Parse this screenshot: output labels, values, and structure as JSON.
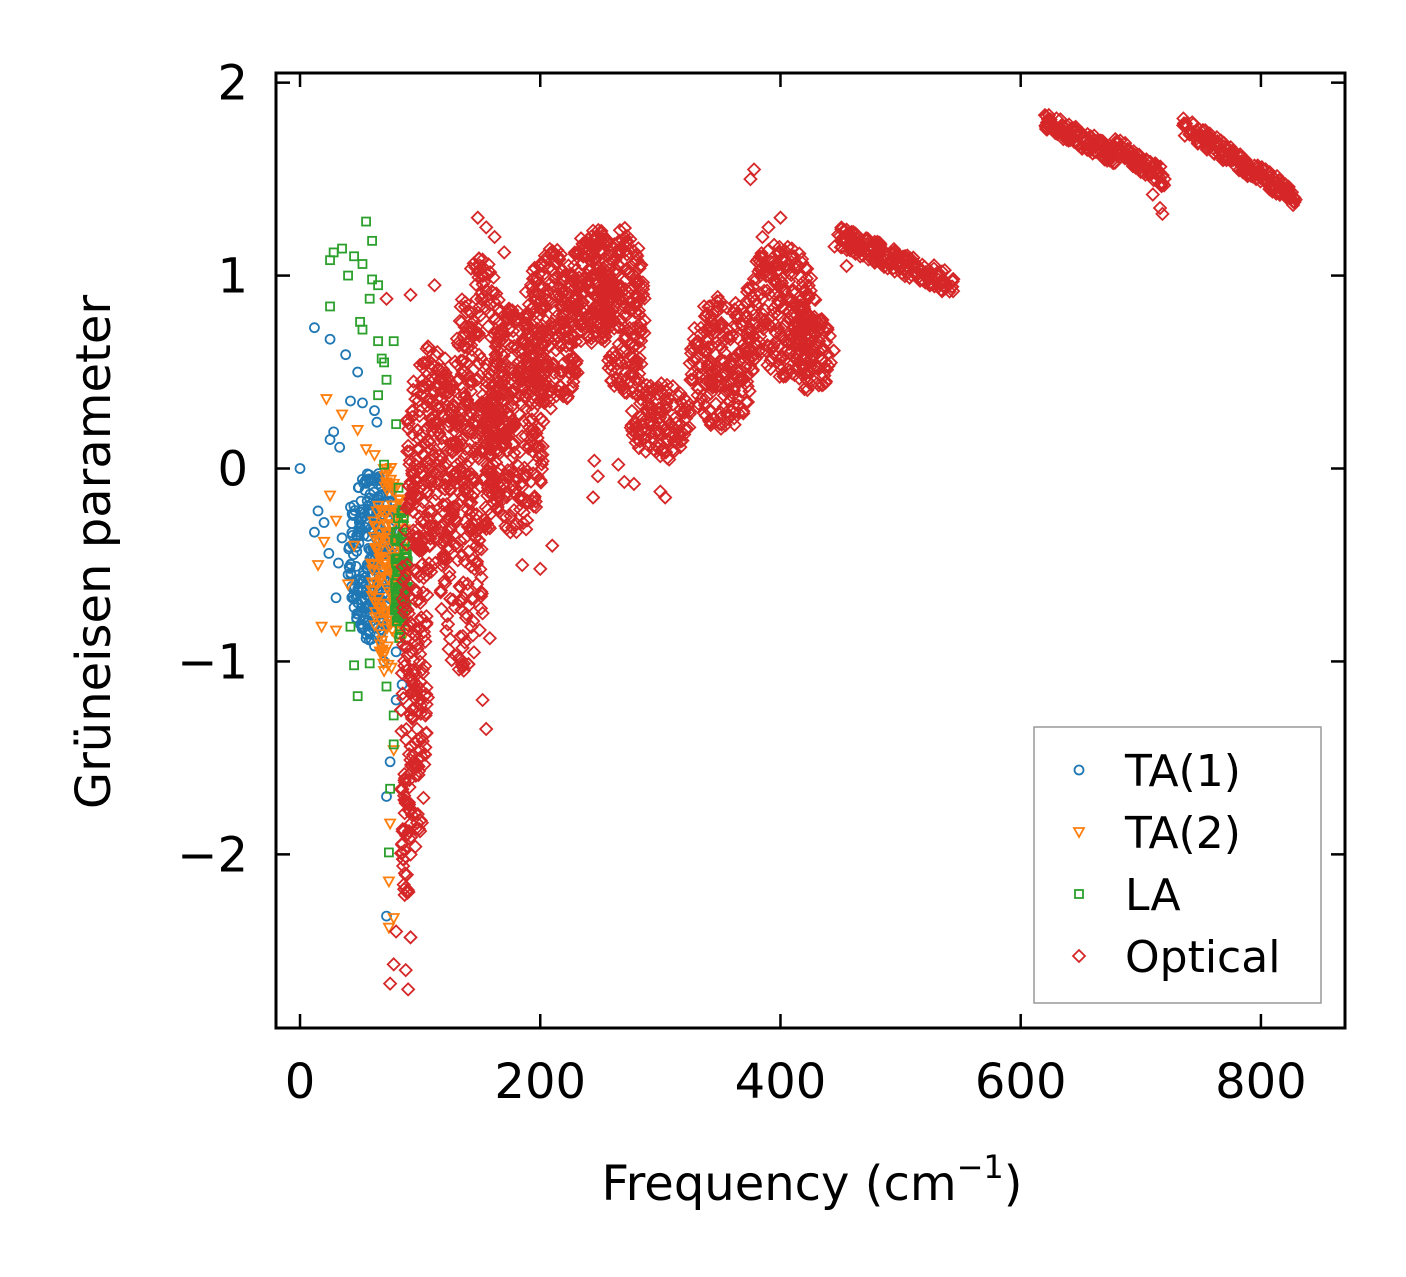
{
  "chart_data": {
    "type": "scatter",
    "title": "",
    "xlabel": "Frequency (cm",
    "xlabel_sup": "−1",
    "xlabel_tail": ")",
    "ylabel": "Grüneisen parameter",
    "xlim": [
      -20,
      870
    ],
    "ylim": [
      -2.9,
      2.05
    ],
    "xticks": [
      0,
      200,
      400,
      600,
      800
    ],
    "xtick_labels": [
      "0",
      "200",
      "400",
      "600",
      "800"
    ],
    "yticks": [
      -2,
      -1,
      0,
      1,
      2
    ],
    "ytick_labels": [
      "−2",
      "−1",
      "0",
      "1",
      "2"
    ],
    "grid": false,
    "legend_position": "bottom-right",
    "series": [
      {
        "name": "TA(1)",
        "marker": "circle",
        "color": "#1f77b4",
        "points": [
          [
            0,
            0
          ],
          [
            12,
            0.73
          ],
          [
            25,
            0.67
          ],
          [
            38,
            0.59
          ],
          [
            42,
            0.35
          ],
          [
            52,
            0.34
          ],
          [
            62,
            0.3
          ],
          [
            64,
            0.24
          ],
          [
            28,
            0.19
          ],
          [
            25,
            0.15
          ],
          [
            33,
            0.11
          ],
          [
            48,
            0.5
          ],
          [
            15,
            -0.22
          ],
          [
            20,
            -0.28
          ],
          [
            12,
            -0.33
          ],
          [
            24,
            -0.44
          ],
          [
            32,
            -0.49
          ],
          [
            40,
            -0.55
          ],
          [
            30,
            -0.67
          ],
          [
            45,
            -0.72
          ],
          [
            55,
            -0.88
          ],
          [
            62,
            -0.92
          ],
          [
            70,
            -1.0
          ],
          [
            80,
            -1.2
          ],
          [
            75,
            -1.52
          ],
          [
            72,
            -1.7
          ],
          [
            72,
            -2.32
          ],
          [
            58,
            -0.06
          ],
          [
            35,
            -0.36
          ],
          [
            42,
            -0.2
          ],
          [
            50,
            -0.3
          ],
          [
            65,
            -0.08
          ],
          [
            70,
            -0.45
          ],
          [
            80,
            -0.95
          ],
          [
            85,
            -1.12
          ]
        ],
        "clusters": [
          {
            "cx": 62,
            "cy": -0.45,
            "rx": 22,
            "ry": 0.45,
            "n": 280
          }
        ]
      },
      {
        "name": "TA(2)",
        "marker": "triangle-down",
        "color": "#ff7f0e",
        "points": [
          [
            22,
            0.36
          ],
          [
            35,
            0.28
          ],
          [
            48,
            0.2
          ],
          [
            55,
            0.1
          ],
          [
            62,
            0.07
          ],
          [
            25,
            -0.14
          ],
          [
            30,
            -0.27
          ],
          [
            20,
            -0.38
          ],
          [
            15,
            -0.5
          ],
          [
            18,
            -0.82
          ],
          [
            30,
            -0.84
          ],
          [
            40,
            -0.6
          ],
          [
            45,
            -0.4
          ],
          [
            60,
            -0.66
          ],
          [
            70,
            -1.05
          ],
          [
            78,
            -1.46
          ],
          [
            75,
            -1.84
          ],
          [
            74,
            -2.14
          ],
          [
            74,
            -2.38
          ],
          [
            78,
            -2.33
          ],
          [
            85,
            -0.5
          ],
          [
            88,
            -0.85
          ]
        ],
        "clusters": [
          {
            "cx": 74,
            "cy": -0.5,
            "rx": 15,
            "ry": 0.55,
            "n": 170
          }
        ]
      },
      {
        "name": "LA",
        "marker": "square",
        "color": "#2ca02c",
        "points": [
          [
            55,
            1.28
          ],
          [
            60,
            1.18
          ],
          [
            28,
            1.12
          ],
          [
            35,
            1.14
          ],
          [
            45,
            1.1
          ],
          [
            52,
            1.06
          ],
          [
            25,
            1.08
          ],
          [
            40,
            1.0
          ],
          [
            60,
            0.98
          ],
          [
            65,
            0.95
          ],
          [
            58,
            0.88
          ],
          [
            25,
            0.84
          ],
          [
            50,
            0.76
          ],
          [
            52,
            0.72
          ],
          [
            65,
            0.66
          ],
          [
            78,
            0.66
          ],
          [
            68,
            0.57
          ],
          [
            70,
            0.55
          ],
          [
            72,
            0.46
          ],
          [
            65,
            0.38
          ],
          [
            80,
            0.23
          ],
          [
            70,
            0.02
          ],
          [
            42,
            -0.82
          ],
          [
            45,
            -1.02
          ],
          [
            48,
            -1.18
          ],
          [
            58,
            -1.01
          ],
          [
            72,
            -1.13
          ],
          [
            78,
            -1.28
          ],
          [
            78,
            -1.43
          ],
          [
            75,
            -1.66
          ],
          [
            74,
            -1.99
          ],
          [
            82,
            -0.1
          ]
        ],
        "clusters": [
          {
            "cx": 84,
            "cy": -0.55,
            "rx": 6,
            "ry": 0.35,
            "n": 80
          }
        ]
      },
      {
        "name": "Optical",
        "marker": "diamond",
        "color": "#d62728",
        "points": [
          [
            72,
            0.88
          ],
          [
            92,
            0.9
          ],
          [
            112,
            0.95
          ],
          [
            75,
            -2.67
          ],
          [
            90,
            -2.7
          ],
          [
            88,
            -2.6
          ],
          [
            78,
            -2.57
          ],
          [
            92,
            -2.43
          ],
          [
            80,
            -2.4
          ],
          [
            152,
            -1.2
          ],
          [
            155,
            -1.35
          ],
          [
            158,
            -0.88
          ],
          [
            152,
            -0.75
          ],
          [
            148,
            1.3
          ],
          [
            155,
            1.25
          ],
          [
            162,
            1.2
          ],
          [
            170,
            1.12
          ],
          [
            185,
            -0.5
          ],
          [
            210,
            -0.4
          ],
          [
            200,
            -0.52
          ],
          [
            244,
            -0.15
          ],
          [
            248,
            -0.04
          ],
          [
            245,
            0.04
          ],
          [
            265,
            0.02
          ],
          [
            270,
            -0.07
          ],
          [
            278,
            -0.08
          ],
          [
            300,
            -0.12
          ],
          [
            304,
            -0.15
          ],
          [
            378,
            1.55
          ],
          [
            375,
            1.5
          ],
          [
            385,
            1.2
          ],
          [
            390,
            1.25
          ],
          [
            400,
            1.3
          ],
          [
            445,
            1.15
          ],
          [
            455,
            1.05
          ],
          [
            716,
            1.35
          ],
          [
            718,
            1.32
          ],
          [
            710,
            1.42
          ]
        ],
        "clusters": [
          {
            "cx": 95,
            "cy": -1.0,
            "rx": 12,
            "ry": 1.0,
            "n": 180
          },
          {
            "cx": 88,
            "cy": -1.9,
            "rx": 5,
            "ry": 0.35,
            "n": 40
          },
          {
            "cx": 110,
            "cy": 0.05,
            "rx": 22,
            "ry": 0.6,
            "n": 260
          },
          {
            "cx": 135,
            "cy": -0.6,
            "rx": 18,
            "ry": 0.45,
            "n": 100
          },
          {
            "cx": 150,
            "cy": 0.35,
            "rx": 22,
            "ry": 0.75,
            "n": 320
          },
          {
            "cx": 180,
            "cy": 0.25,
            "rx": 25,
            "ry": 0.6,
            "n": 300
          },
          {
            "cx": 210,
            "cy": 0.72,
            "rx": 25,
            "ry": 0.42,
            "n": 260
          },
          {
            "cx": 245,
            "cy": 0.95,
            "rx": 20,
            "ry": 0.3,
            "n": 200
          },
          {
            "cx": 270,
            "cy": 0.8,
            "rx": 18,
            "ry": 0.45,
            "n": 200
          },
          {
            "cx": 300,
            "cy": 0.25,
            "rx": 25,
            "ry": 0.22,
            "n": 140
          },
          {
            "cx": 352,
            "cy": 0.55,
            "rx": 28,
            "ry": 0.35,
            "n": 220
          },
          {
            "cx": 400,
            "cy": 0.82,
            "rx": 30,
            "ry": 0.35,
            "n": 240
          },
          {
            "cx": 425,
            "cy": 0.6,
            "rx": 20,
            "ry": 0.2,
            "n": 100
          }
        ],
        "bands": [
          {
            "x0": 448,
            "x1": 545,
            "y0": 1.2,
            "y1": 0.95,
            "w": 0.06,
            "n": 200
          },
          {
            "x0": 620,
            "x1": 680,
            "y0": 1.8,
            "y1": 1.62,
            "w": 0.05,
            "n": 130
          },
          {
            "x0": 678,
            "x1": 720,
            "y0": 1.68,
            "y1": 1.5,
            "w": 0.05,
            "n": 90
          },
          {
            "x0": 735,
            "x1": 830,
            "y0": 1.78,
            "y1": 1.4,
            "w": 0.05,
            "n": 200
          }
        ]
      }
    ]
  }
}
